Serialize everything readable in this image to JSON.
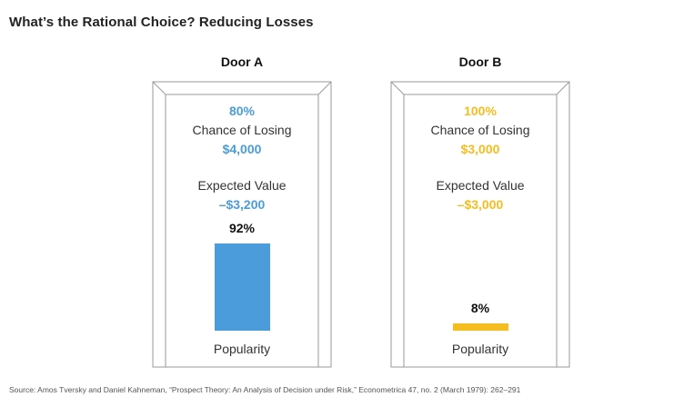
{
  "title": "What’s the Rational Choice? Reducing Losses",
  "source": "Source: Amos Tversky and Daniel Kahneman, “Prospect Theory: An Analysis of Decision under Risk,” Econometrica 47, no. 2 (March 1979): 262–291",
  "colors": {
    "door_a": "#4a9cda",
    "door_b": "#f5bd1f",
    "frame": "#9a9a9a"
  },
  "chart_data": {
    "type": "bar",
    "title": "What’s the Rational Choice? Reducing Losses",
    "categories": [
      "Door A",
      "Door B"
    ],
    "values": [
      92,
      8
    ],
    "ylim": [
      0,
      100
    ],
    "ylabel": "Popularity",
    "value_labels": [
      "92%",
      "8%"
    ],
    "doors": [
      {
        "name": "Door A",
        "probability": "80%",
        "chance_label": "Chance of Losing",
        "amount": "$4,000",
        "ev_label": "Expected Value",
        "expected_value": "–$3,200",
        "popularity": 92,
        "popularity_text": "92%",
        "popularity_label": "Popularity",
        "color": "#4a9cda"
      },
      {
        "name": "Door B",
        "probability": "100%",
        "chance_label": "Chance of Losing",
        "amount": "$3,000",
        "ev_label": "Expected Value",
        "expected_value": "–$3,000",
        "popularity": 8,
        "popularity_text": "8%",
        "popularity_label": "Popularity",
        "color": "#f5bd1f"
      }
    ]
  }
}
